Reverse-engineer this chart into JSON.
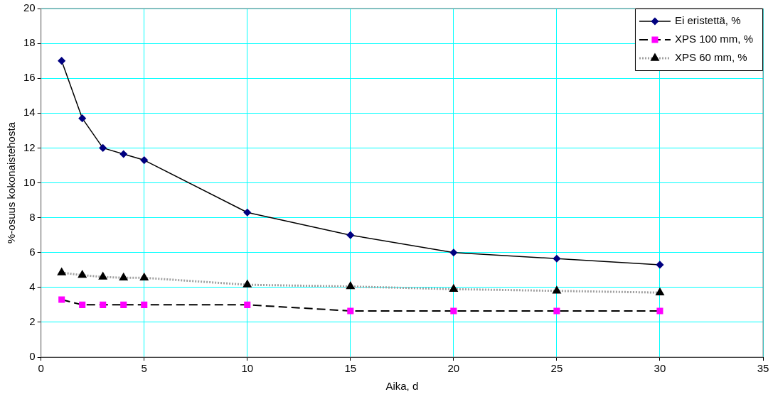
{
  "chart_data": {
    "type": "line",
    "xlabel": "Aika, d",
    "ylabel": "%-osuus kokonaistehosta",
    "x": [
      1,
      2,
      3,
      4,
      5,
      10,
      15,
      20,
      25,
      30
    ],
    "series": [
      {
        "name": "Ei eristettä, %",
        "color": "#000080",
        "marker": "diamond",
        "line_style": "solid",
        "values": [
          17,
          13.7,
          12.0,
          11.65,
          11.3,
          8.3,
          7.0,
          6.0,
          5.65,
          5.3
        ]
      },
      {
        "name": "XPS 100 mm, %",
        "color": "#ff00ff",
        "marker": "square",
        "line_style": "dashed",
        "values": [
          3.3,
          3.0,
          3.0,
          3.0,
          3.0,
          3.0,
          2.65,
          2.65,
          2.65,
          2.65
        ]
      },
      {
        "name": "XPS 60 mm, %",
        "color": "#000000",
        "marker": "triangle",
        "line_style": "dotted",
        "values": [
          4.85,
          4.7,
          4.6,
          4.55,
          4.55,
          4.15,
          4.05,
          3.9,
          3.8,
          3.7
        ]
      }
    ],
    "xlim": [
      0,
      35
    ],
    "xticks": [
      0,
      5,
      10,
      15,
      20,
      25,
      30,
      35
    ],
    "ylim": [
      0,
      20
    ],
    "yticks": [
      0,
      2,
      4,
      6,
      8,
      10,
      12,
      14,
      16,
      18,
      20
    ],
    "grid": true,
    "legend": "top right"
  }
}
